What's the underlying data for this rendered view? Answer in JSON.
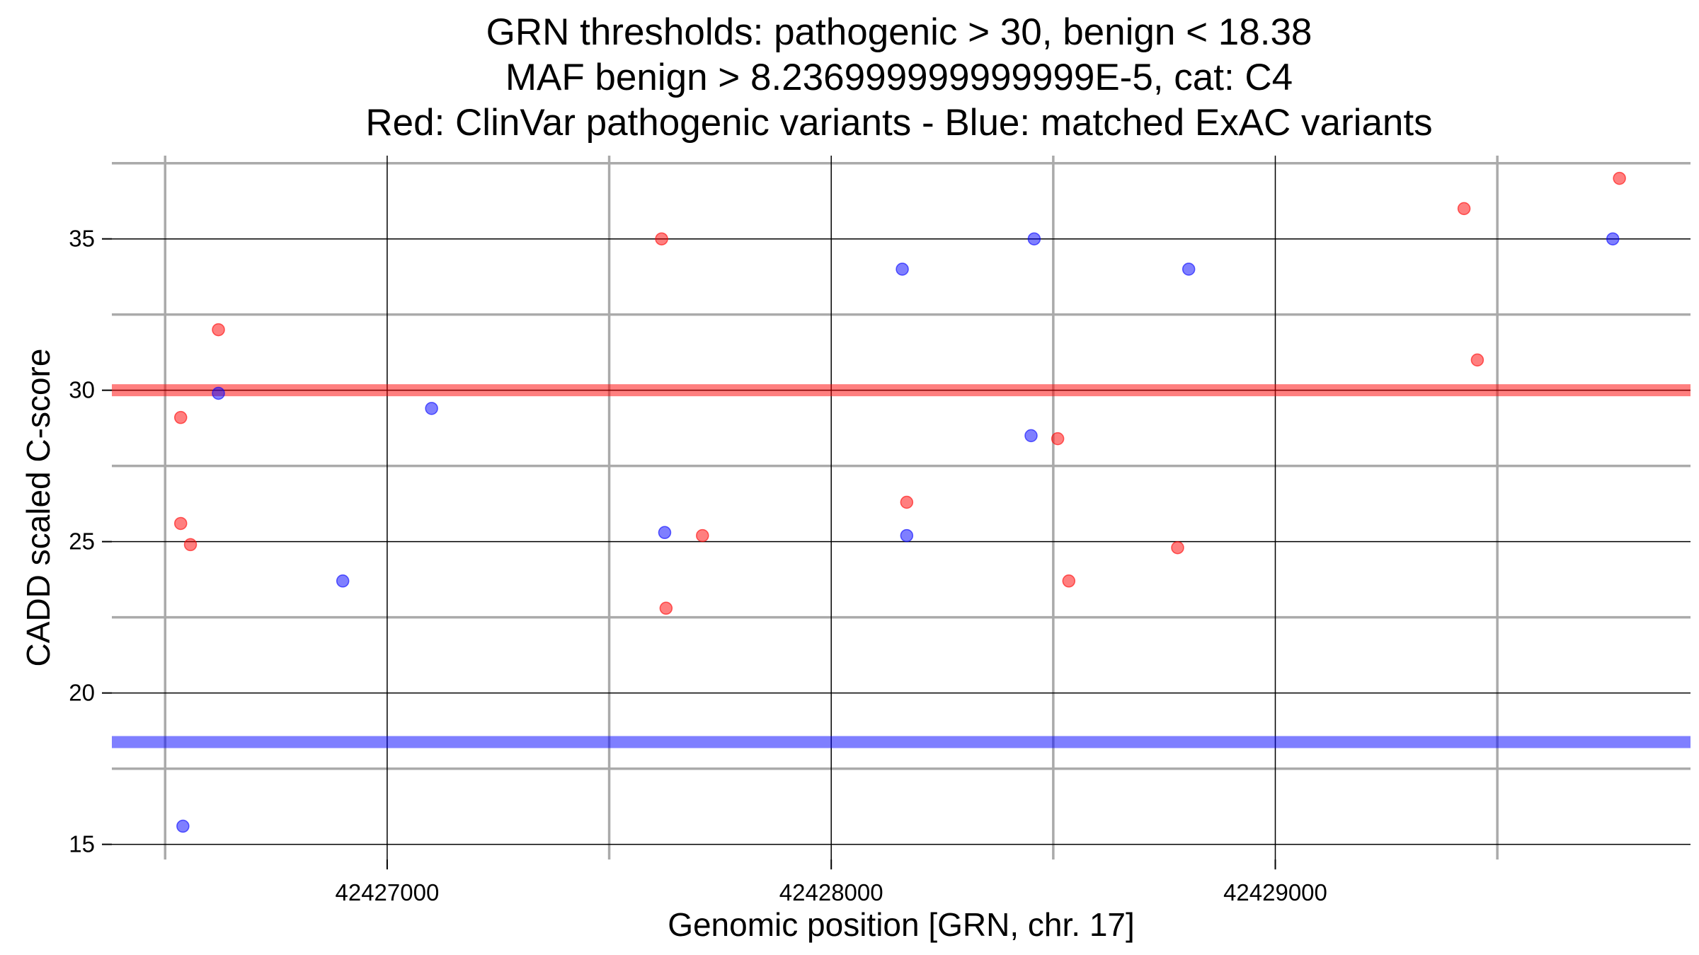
{
  "chart_data": {
    "type": "scatter",
    "title_lines": [
      "GRN thresholds: pathogenic > 30, benign < 18.38",
      "MAF benign > 8.236999999999999E-5, cat: C4",
      "Red: ClinVar pathogenic variants - Blue: matched ExAC variants"
    ],
    "xlabel": "Genomic position [GRN, chr. 17]",
    "ylabel": "CADD scaled C-score",
    "xlim": [
      42426380,
      42429935
    ],
    "ylim": [
      14.5,
      37.75
    ],
    "x_ticks": [
      42427000,
      42428000,
      42429000
    ],
    "x_tick_labels": [
      "42427000",
      "42428000",
      "42429000"
    ],
    "x_minor_ticks": [
      42426500,
      42427500,
      42428500,
      42429500
    ],
    "y_ticks": [
      15,
      20,
      25,
      30,
      35
    ],
    "y_tick_labels": [
      "15",
      "20",
      "25",
      "30",
      "35"
    ],
    "y_minor_ticks": [
      17.5,
      22.5,
      27.5,
      32.5,
      37.5
    ],
    "grid": true,
    "thresholds": [
      {
        "axis": "y",
        "value": 30,
        "color": "#ff0000"
      },
      {
        "axis": "y",
        "value": 18.38,
        "color": "#0000ff"
      }
    ],
    "series": [
      {
        "color": "#ff0000",
        "points": [
          {
            "x": 42426535,
            "y": 29.1
          },
          {
            "x": 42426535,
            "y": 25.6
          },
          {
            "x": 42426557,
            "y": 24.9
          },
          {
            "x": 42426620,
            "y": 32.0
          },
          {
            "x": 42427618,
            "y": 35.0
          },
          {
            "x": 42427628,
            "y": 22.8
          },
          {
            "x": 42427710,
            "y": 25.2
          },
          {
            "x": 42428170,
            "y": 26.3
          },
          {
            "x": 42428510,
            "y": 28.4
          },
          {
            "x": 42428535,
            "y": 23.7
          },
          {
            "x": 42428780,
            "y": 24.8
          },
          {
            "x": 42429425,
            "y": 36.0
          },
          {
            "x": 42429455,
            "y": 31.0
          },
          {
            "x": 42429775,
            "y": 37.0
          }
        ]
      },
      {
        "color": "#0000ff",
        "points": [
          {
            "x": 42426540,
            "y": 15.6
          },
          {
            "x": 42426620,
            "y": 29.9
          },
          {
            "x": 42426900,
            "y": 23.7
          },
          {
            "x": 42427100,
            "y": 29.4
          },
          {
            "x": 42427625,
            "y": 25.3
          },
          {
            "x": 42428160,
            "y": 34.0
          },
          {
            "x": 42428170,
            "y": 25.2
          },
          {
            "x": 42428450,
            "y": 28.5
          },
          {
            "x": 42428457,
            "y": 35.0
          },
          {
            "x": 42428805,
            "y": 34.0
          },
          {
            "x": 42429760,
            "y": 35.0
          }
        ]
      }
    ]
  }
}
